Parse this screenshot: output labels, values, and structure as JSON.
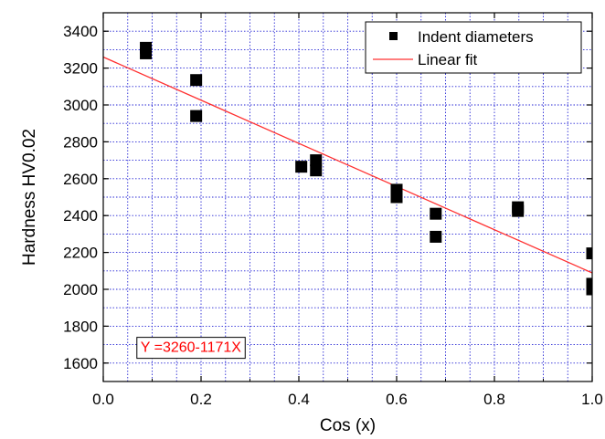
{
  "chart_data": {
    "type": "scatter",
    "title": "",
    "xlabel": "Cos (x)",
    "ylabel": "Hardness  HV0.02",
    "xlim": [
      0.0,
      1.0
    ],
    "ylim": [
      1500,
      3500
    ],
    "x_ticks": [
      0.0,
      0.2,
      0.4,
      0.6,
      0.8,
      1.0
    ],
    "x_tick_labels": [
      "0.0",
      "0.2",
      "0.4",
      "0.6",
      "0.8",
      "1.0"
    ],
    "y_ticks": [
      1600,
      1800,
      2000,
      2200,
      2400,
      2600,
      2800,
      3000,
      3200,
      3400
    ],
    "y_tick_labels": [
      "1600",
      "1800",
      "2000",
      "2200",
      "2400",
      "2600",
      "2800",
      "3000",
      "3200",
      "3400"
    ],
    "grid": true,
    "grid_style": "dotted",
    "grid_color": "#2a2ad6",
    "legend_placement": "top-right",
    "series": [
      {
        "name": "Indent diameters",
        "kind": "scatter",
        "marker": "square",
        "color": "#000000",
        "points": [
          {
            "x": 0.087,
            "y": 3310
          },
          {
            "x": 0.087,
            "y": 3280
          },
          {
            "x": 0.19,
            "y": 3135
          },
          {
            "x": 0.19,
            "y": 2940
          },
          {
            "x": 0.405,
            "y": 2665
          },
          {
            "x": 0.435,
            "y": 2700
          },
          {
            "x": 0.435,
            "y": 2645
          },
          {
            "x": 0.6,
            "y": 2540
          },
          {
            "x": 0.6,
            "y": 2500
          },
          {
            "x": 0.68,
            "y": 2410
          },
          {
            "x": 0.68,
            "y": 2285
          },
          {
            "x": 0.848,
            "y": 2445
          },
          {
            "x": 0.848,
            "y": 2425
          },
          {
            "x": 1.0,
            "y": 2195
          },
          {
            "x": 1.0,
            "y": 2030
          },
          {
            "x": 1.0,
            "y": 2000
          }
        ]
      },
      {
        "name": "Linear fit",
        "kind": "line",
        "color": "#ff3030",
        "intercept": 3260,
        "slope": -1171
      }
    ],
    "annotations": [
      {
        "text": "Y =3260-1171X",
        "color": "#ff0000",
        "x": 0.065,
        "y": 1690
      }
    ]
  }
}
